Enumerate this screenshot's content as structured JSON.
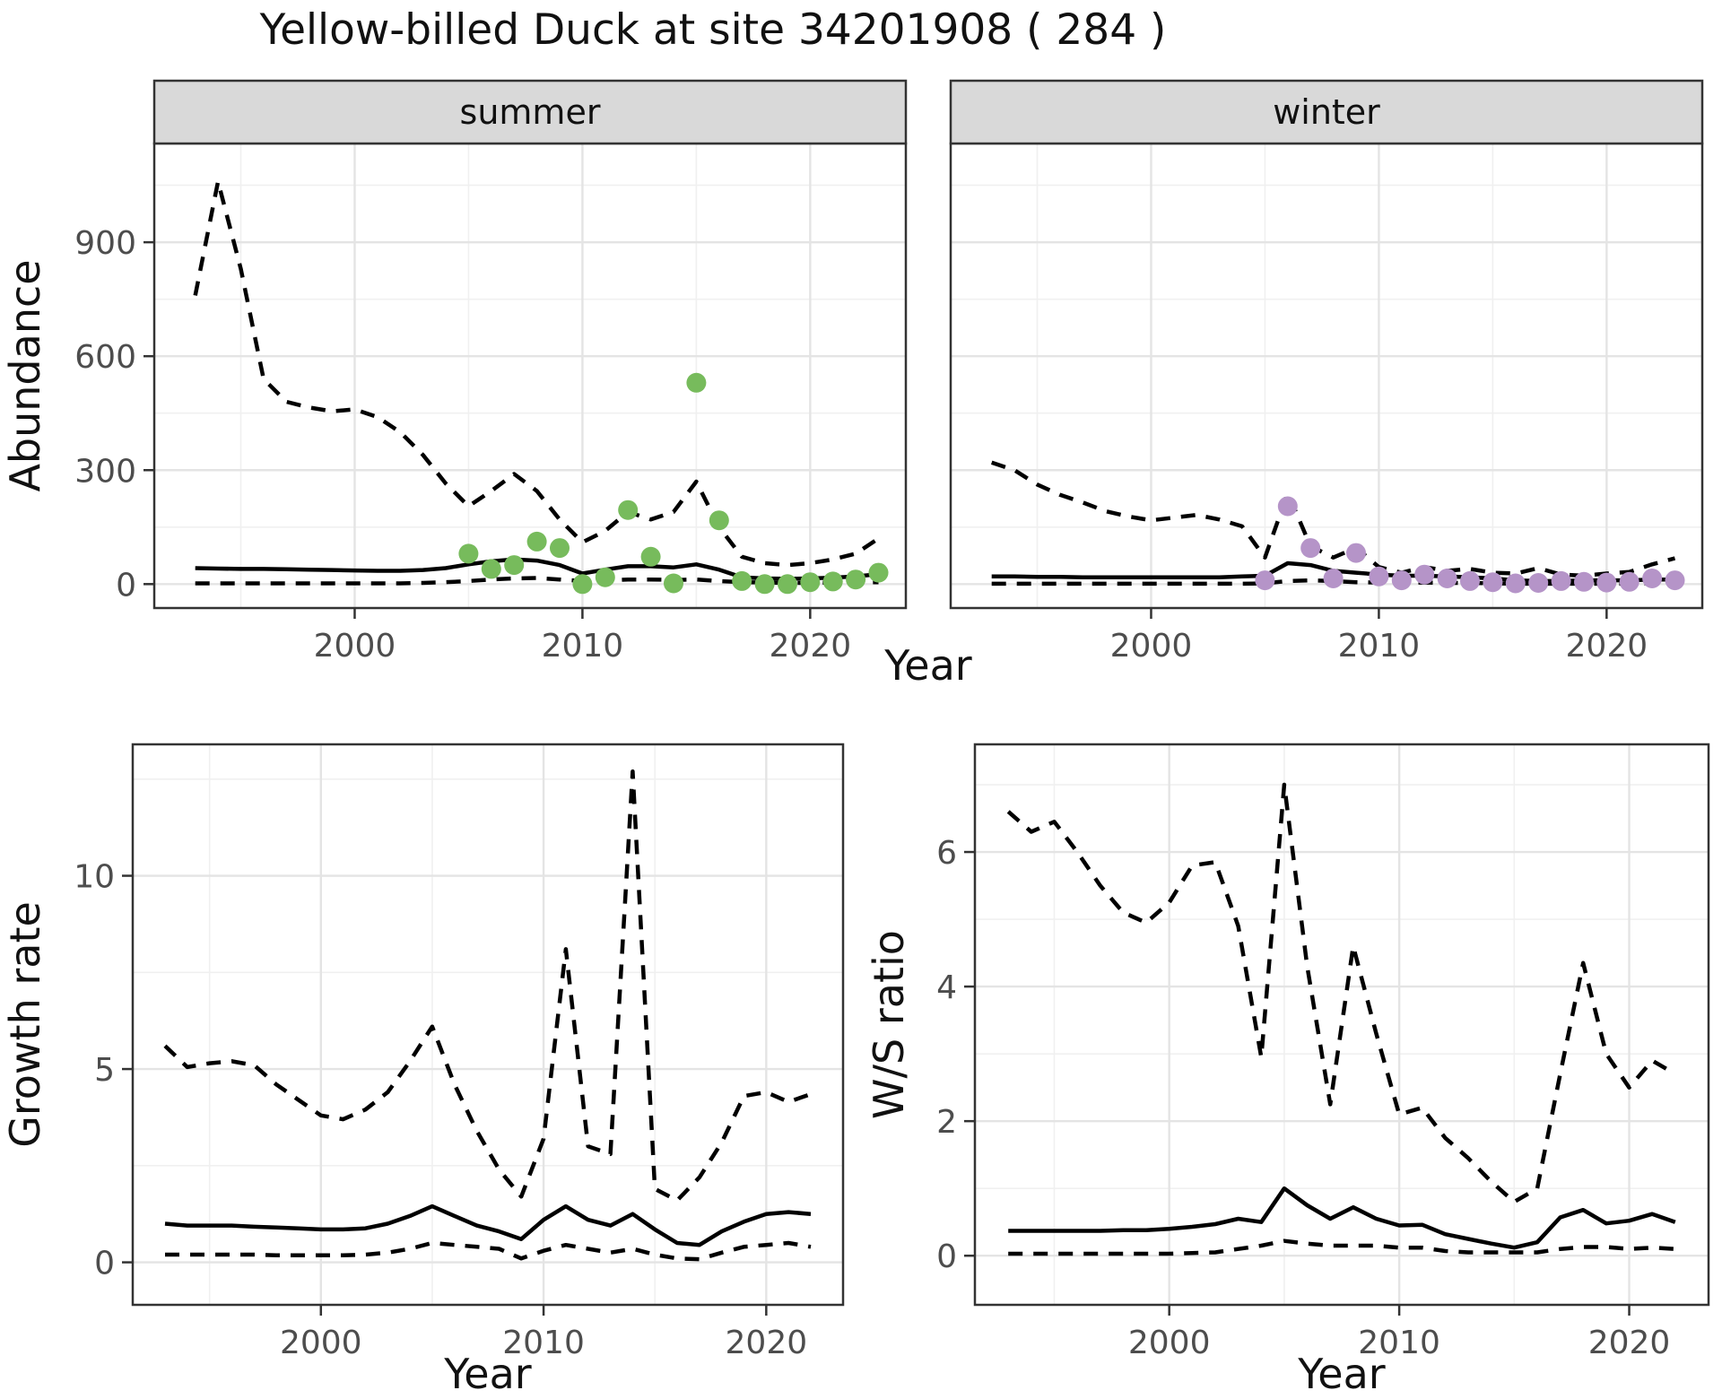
{
  "title": "Yellow-billed Duck at site 34201908 ( 284 )",
  "colors": {
    "summer_point": "#77bb5c",
    "winter_point": "#b594c8",
    "line": "#000000",
    "strip_bg": "#d9d9d9",
    "panel_border": "#333333",
    "grid_major": "#e4e4e4",
    "grid_minor": "#f0f0f0",
    "tick_label": "#4d4d4d",
    "text": "#111111"
  },
  "chart_data": [
    {
      "id": "abundance-summer",
      "type": "line",
      "facet_label": "summer",
      "ylabel": "Abundance",
      "xlabel": "Year",
      "x_ticks": [
        2000,
        2010,
        2020
      ],
      "x_minor": [
        1995,
        2005,
        2015
      ],
      "y_ticks": [
        0,
        300,
        600,
        900
      ],
      "y_minor": [
        150,
        450,
        750,
        1050
      ],
      "xlim": [
        1991.2,
        2024.2
      ],
      "ylim": [
        -63,
        1160
      ],
      "x": [
        1993,
        1994,
        1995,
        1996,
        1997,
        1998,
        1999,
        2000,
        2001,
        2002,
        2003,
        2004,
        2005,
        2006,
        2007,
        2008,
        2009,
        2010,
        2011,
        2012,
        2013,
        2014,
        2015,
        2016,
        2017,
        2018,
        2019,
        2020,
        2021,
        2022,
        2023
      ],
      "series": [
        {
          "name": "upper-ci",
          "style": "dashed",
          "values": [
            760,
            1060,
            830,
            540,
            480,
            465,
            455,
            460,
            440,
            400,
            340,
            265,
            205,
            245,
            290,
            245,
            170,
            110,
            140,
            190,
            170,
            190,
            270,
            150,
            72,
            55,
            50,
            55,
            65,
            80,
            120
          ]
        },
        {
          "name": "median",
          "style": "solid",
          "values": [
            42,
            41,
            40,
            40,
            39,
            38,
            37,
            36,
            35,
            35,
            37,
            42,
            52,
            60,
            65,
            62,
            50,
            28,
            38,
            47,
            47,
            44,
            52,
            38,
            18,
            15,
            14,
            15,
            17,
            20,
            26
          ]
        },
        {
          "name": "lower-ci",
          "style": "dashed",
          "values": [
            2,
            2,
            2,
            2,
            2,
            2,
            2,
            2,
            2,
            2,
            3,
            5,
            8,
            12,
            15,
            16,
            12,
            8,
            10,
            12,
            12,
            11,
            12,
            8,
            5,
            4,
            3,
            3,
            4,
            4,
            5
          ]
        }
      ],
      "points": {
        "name": "observed-summer",
        "color_key": "summer_point",
        "x": [
          2005,
          2006,
          2007,
          2008,
          2009,
          2010,
          2011,
          2012,
          2013,
          2014,
          2015,
          2016,
          2017,
          2018,
          2019,
          2020,
          2021,
          2022,
          2023
        ],
        "values": [
          80,
          40,
          50,
          112,
          95,
          0,
          18,
          195,
          72,
          2,
          530,
          168,
          8,
          0,
          0,
          5,
          7,
          12,
          30
        ]
      }
    },
    {
      "id": "abundance-winter",
      "type": "line",
      "facet_label": "winter",
      "ylabel": null,
      "xlabel": "Year",
      "x_ticks": [
        2000,
        2010,
        2020
      ],
      "x_minor": [
        1995,
        2005,
        2015
      ],
      "y_ticks": [
        0,
        300,
        600,
        900
      ],
      "y_minor": [
        150,
        450,
        750,
        1050
      ],
      "xlim": [
        1991.2,
        2024.2
      ],
      "ylim": [
        -63,
        1160
      ],
      "x": [
        1993,
        1994,
        1995,
        1996,
        1997,
        1998,
        1999,
        2000,
        2001,
        2002,
        2003,
        2004,
        2005,
        2006,
        2007,
        2008,
        2009,
        2010,
        2011,
        2012,
        2013,
        2014,
        2015,
        2016,
        2017,
        2018,
        2019,
        2020,
        2021,
        2022,
        2023
      ],
      "series": [
        {
          "name": "upper-ci",
          "style": "dashed",
          "values": [
            320,
            300,
            262,
            235,
            215,
            192,
            178,
            168,
            175,
            182,
            170,
            152,
            70,
            240,
            100,
            70,
            96,
            45,
            30,
            45,
            35,
            40,
            30,
            28,
            42,
            25,
            22,
            28,
            32,
            52,
            68
          ]
        },
        {
          "name": "median",
          "style": "solid",
          "values": [
            20,
            20,
            19,
            19,
            18,
            18,
            18,
            18,
            18,
            18,
            18,
            20,
            22,
            55,
            50,
            35,
            30,
            25,
            22,
            22,
            20,
            18,
            15,
            10,
            8,
            8,
            10,
            10,
            10,
            12,
            12
          ]
        },
        {
          "name": "lower-ci",
          "style": "dashed",
          "values": [
            1,
            1,
            1,
            1,
            1,
            1,
            1,
            1,
            1,
            1,
            1,
            1,
            2,
            8,
            10,
            8,
            5,
            4,
            4,
            4,
            3,
            3,
            2,
            1,
            1,
            1,
            1,
            1,
            1,
            2,
            2
          ]
        }
      ],
      "points": {
        "name": "observed-winter",
        "color_key": "winter_point",
        "x": [
          2005,
          2006,
          2007,
          2008,
          2009,
          2010,
          2011,
          2012,
          2013,
          2014,
          2015,
          2016,
          2017,
          2018,
          2019,
          2020,
          2021,
          2022,
          2023
        ],
        "values": [
          10,
          205,
          95,
          15,
          82,
          20,
          10,
          25,
          15,
          8,
          5,
          2,
          3,
          8,
          6,
          4,
          6,
          15,
          10
        ]
      }
    },
    {
      "id": "growth-rate",
      "type": "line",
      "facet_label": null,
      "ylabel": "Growth rate",
      "xlabel": "Year",
      "x_ticks": [
        2000,
        2010,
        2020
      ],
      "x_minor": [
        1995,
        2005,
        2015
      ],
      "y_ticks": [
        0,
        5,
        10
      ],
      "y_minor": [
        2.5,
        7.5,
        12.5
      ],
      "xlim": [
        1991.55,
        2023.45
      ],
      "ylim": [
        -1.1,
        13.4
      ],
      "x": [
        1993,
        1994,
        1995,
        1996,
        1997,
        1998,
        1999,
        2000,
        2001,
        2002,
        2003,
        2004,
        2005,
        2006,
        2007,
        2008,
        2009,
        2010,
        2011,
        2012,
        2013,
        2014,
        2015,
        2016,
        2017,
        2018,
        2019,
        2020,
        2021,
        2022
      ],
      "series": [
        {
          "name": "upper-ci",
          "style": "dashed",
          "values": [
            5.6,
            5.05,
            5.15,
            5.2,
            5.1,
            4.6,
            4.2,
            3.8,
            3.7,
            3.95,
            4.4,
            5.2,
            6.1,
            4.6,
            3.4,
            2.4,
            1.7,
            3.2,
            8.1,
            3.0,
            2.8,
            12.7,
            1.9,
            1.6,
            2.2,
            3.1,
            4.3,
            4.4,
            4.15,
            4.35
          ]
        },
        {
          "name": "median",
          "style": "solid",
          "values": [
            1.0,
            0.95,
            0.95,
            0.95,
            0.92,
            0.9,
            0.88,
            0.85,
            0.85,
            0.88,
            1.0,
            1.2,
            1.45,
            1.2,
            0.95,
            0.8,
            0.6,
            1.1,
            1.45,
            1.1,
            0.95,
            1.25,
            0.85,
            0.5,
            0.45,
            0.8,
            1.05,
            1.25,
            1.3,
            1.25
          ]
        },
        {
          "name": "lower-ci",
          "style": "dashed",
          "values": [
            0.2,
            0.2,
            0.2,
            0.2,
            0.2,
            0.18,
            0.18,
            0.18,
            0.18,
            0.2,
            0.25,
            0.35,
            0.5,
            0.45,
            0.4,
            0.35,
            0.1,
            0.3,
            0.45,
            0.35,
            0.25,
            0.35,
            0.2,
            0.1,
            0.08,
            0.25,
            0.4,
            0.45,
            0.5,
            0.4
          ]
        }
      ],
      "points": null
    },
    {
      "id": "ws-ratio",
      "type": "line",
      "facet_label": null,
      "ylabel": "W/S ratio",
      "xlabel": "Year",
      "x_ticks": [
        2000,
        2010,
        2020
      ],
      "x_minor": [
        1995,
        2005,
        2015
      ],
      "y_ticks": [
        0,
        2,
        4,
        6
      ],
      "y_minor": [
        1,
        3,
        5,
        7
      ],
      "xlim": [
        1991.55,
        2023.45
      ],
      "ylim": [
        -0.73,
        7.6
      ],
      "x": [
        1993,
        1994,
        1995,
        1996,
        1997,
        1998,
        1999,
        2000,
        2001,
        2002,
        2003,
        2004,
        2005,
        2006,
        2007,
        2008,
        2009,
        2010,
        2011,
        2012,
        2013,
        2014,
        2015,
        2016,
        2017,
        2018,
        2019,
        2020,
        2021,
        2022
      ],
      "series": [
        {
          "name": "upper-ci",
          "style": "dashed",
          "values": [
            6.6,
            6.3,
            6.45,
            6.0,
            5.5,
            5.1,
            4.95,
            5.25,
            5.8,
            5.85,
            4.9,
            2.95,
            7.0,
            4.3,
            2.25,
            4.6,
            3.3,
            2.1,
            2.2,
            1.75,
            1.45,
            1.1,
            0.8,
            1.0,
            2.7,
            4.35,
            3.0,
            2.5,
            2.9,
            2.7
          ]
        },
        {
          "name": "median",
          "style": "solid",
          "values": [
            0.37,
            0.37,
            0.37,
            0.37,
            0.37,
            0.38,
            0.38,
            0.4,
            0.43,
            0.47,
            0.55,
            0.5,
            1.0,
            0.75,
            0.55,
            0.72,
            0.55,
            0.45,
            0.46,
            0.32,
            0.25,
            0.18,
            0.12,
            0.2,
            0.57,
            0.68,
            0.48,
            0.52,
            0.62,
            0.5
          ]
        },
        {
          "name": "lower-ci",
          "style": "dashed",
          "values": [
            0.03,
            0.03,
            0.03,
            0.03,
            0.03,
            0.03,
            0.03,
            0.03,
            0.04,
            0.05,
            0.1,
            0.15,
            0.22,
            0.18,
            0.15,
            0.15,
            0.15,
            0.12,
            0.12,
            0.07,
            0.05,
            0.05,
            0.05,
            0.05,
            0.1,
            0.13,
            0.13,
            0.1,
            0.12,
            0.1
          ]
        }
      ],
      "points": null
    }
  ]
}
